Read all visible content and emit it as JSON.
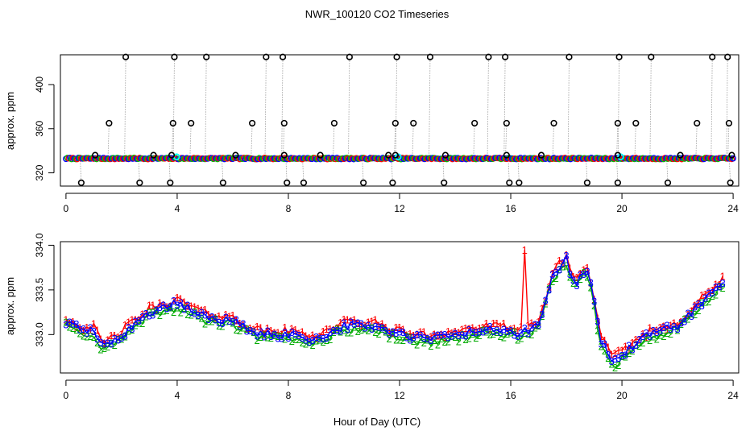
{
  "chart_data": {
    "title": "NWR_100120  CO2 Timeseries",
    "xlabel": "Hour of Day (UTC)",
    "panels": [
      {
        "name": "top",
        "type": "scatter",
        "ylabel": "approx. ppm",
        "xlim": [
          -0.2,
          24.2
        ],
        "ylim": [
          308,
          427
        ],
        "xticks": [
          0,
          4,
          8,
          12,
          16,
          20,
          24
        ],
        "yticks": [
          320,
          360,
          400
        ],
        "baseline_ppm": 333.0,
        "series_colors": {
          "1": "#ff0000",
          "2": "#00bb00",
          "3": "#0000ff",
          "mean": "#00ffff"
        },
        "outliers": {
          "high_425": [
            2.15,
            3.9,
            5.05,
            7.2,
            7.8,
            10.2,
            11.9,
            13.1,
            15.2,
            15.8,
            18.1,
            19.9,
            21.05,
            23.25,
            23.8
          ],
          "level_365": [
            1.55,
            3.85,
            4.5,
            6.7,
            7.85,
            9.65,
            11.85,
            12.5,
            14.7,
            15.85,
            17.55,
            19.85,
            20.5,
            22.7,
            23.85
          ],
          "level_336": [
            1.05,
            3.15,
            3.8,
            6.1,
            7.85,
            9.15,
            11.6,
            11.85,
            13.65,
            15.85,
            17.1,
            19.85,
            22.1,
            23.95
          ],
          "low_311": [
            0.55,
            2.65,
            3.75,
            5.65,
            7.95,
            8.55,
            10.7,
            11.75,
            13.6,
            15.95,
            16.3,
            18.75,
            19.85,
            21.65,
            23.9
          ]
        }
      },
      {
        "name": "bottom",
        "type": "line",
        "ylabel": "approx. ppm",
        "xlim": [
          -0.2,
          24.2
        ],
        "ylim": [
          332.57,
          334.04
        ],
        "xticks": [
          0,
          4,
          8,
          12,
          16,
          20,
          24
        ],
        "yticks": [
          333.0,
          333.5,
          334.0
        ],
        "ytick_labels": [
          "333.0",
          "333.5",
          "334.0"
        ],
        "series": [
          {
            "name": "1",
            "color": "#ff0000"
          },
          {
            "name": "2",
            "color": "#00aa00"
          },
          {
            "name": "3",
            "color": "#0000ff"
          }
        ],
        "anchors_hour": [
          0.0,
          0.5,
          1.0,
          1.3,
          2.0,
          3.0,
          4.0,
          5.0,
          6.0,
          7.0,
          8.0,
          9.0,
          10.0,
          11.0,
          12.0,
          13.0,
          14.0,
          15.0,
          16.0,
          16.3,
          17.0,
          17.5,
          18.0,
          18.3,
          18.7,
          19.0,
          19.2,
          19.7,
          20.5,
          21.0,
          22.0,
          23.0,
          23.7
        ],
        "anchors_ppm": [
          333.15,
          333.05,
          333.05,
          332.85,
          333.0,
          333.25,
          333.35,
          333.2,
          333.15,
          333.0,
          333.0,
          332.95,
          333.1,
          333.1,
          333.0,
          332.95,
          333.0,
          333.05,
          333.05,
          333.0,
          333.1,
          333.65,
          333.85,
          333.55,
          333.75,
          333.4,
          332.95,
          332.7,
          332.9,
          333.0,
          333.1,
          333.4,
          333.6
        ],
        "spike_series1": {
          "hour": 16.5,
          "ppm": 333.95
        }
      }
    ]
  }
}
